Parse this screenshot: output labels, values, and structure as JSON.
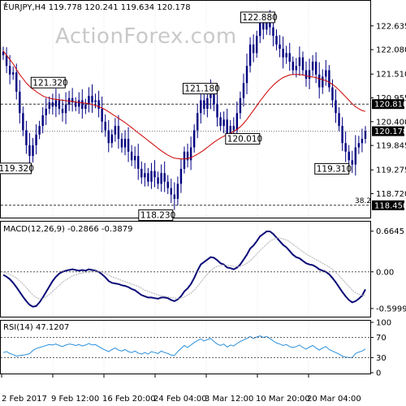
{
  "chart_data": {
    "type": "candlestick",
    "symbol": "EURJPY",
    "timeframe": "H4",
    "header": "EURJPY,H4  119.778 120.241 119.634 120.178",
    "watermark": "ActionForex.com",
    "ohlc_last": {
      "open": 119.778,
      "high": 120.241,
      "low": 119.634,
      "close": 120.178
    },
    "price_axis": {
      "range": [
        118.2,
        123.2
      ],
      "ticks": [
        {
          "value": 122.635,
          "label": "122.635"
        },
        {
          "value": 122.08,
          "label": "122.080"
        },
        {
          "value": 121.51,
          "label": "121.510"
        },
        {
          "value": 120.955,
          "label": "120.955"
        },
        {
          "value": 120.4,
          "label": "120.400"
        },
        {
          "value": 119.845,
          "label": "119.845"
        },
        {
          "value": 119.275,
          "label": "119.275"
        },
        {
          "value": 118.72,
          "label": "118.720"
        }
      ]
    },
    "horizontal_levels": [
      {
        "value": 120.81,
        "label": "120.810",
        "style": "dashed"
      },
      {
        "value": 120.178,
        "label": "120.178",
        "style": "dotted",
        "current": true
      },
      {
        "value": 118.45,
        "label": "118.450",
        "style": "dashed",
        "fib": "38.2"
      }
    ],
    "annotations": [
      {
        "label": "121.320",
        "value": 121.32,
        "bar": 5
      },
      {
        "label": "119.320",
        "value": 119.32,
        "bar": 8
      },
      {
        "label": "118.230",
        "value": 118.23,
        "bar": 52
      },
      {
        "label": "121.180",
        "value": 121.18,
        "bar": 63
      },
      {
        "label": "120.010",
        "value": 120.01,
        "bar": 70
      },
      {
        "label": "122.880",
        "value": 122.88,
        "bar": 81
      },
      {
        "label": "119.310",
        "value": 119.31,
        "bar": 106
      }
    ],
    "fib_label": "38.2",
    "close": [
      121.95,
      121.7,
      121.5,
      121.55,
      121.1,
      120.6,
      120.2,
      119.85,
      119.6,
      119.85,
      120.1,
      120.3,
      120.55,
      120.7,
      120.85,
      120.75,
      120.9,
      120.7,
      120.6,
      120.8,
      120.95,
      120.85,
      120.75,
      120.9,
      120.7,
      120.8,
      121.0,
      120.85,
      120.9,
      120.7,
      120.4,
      120.2,
      119.9,
      120.1,
      120.3,
      120.0,
      119.8,
      120.0,
      119.7,
      119.5,
      119.6,
      119.3,
      119.1,
      119.2,
      119.0,
      119.25,
      119.1,
      118.95,
      119.2,
      119.0,
      118.85,
      118.7,
      118.6,
      118.95,
      119.3,
      119.7,
      119.5,
      119.8,
      120.2,
      120.6,
      120.9,
      120.7,
      120.95,
      121.1,
      120.8,
      120.5,
      120.3,
      120.45,
      120.1,
      120.3,
      120.2,
      120.6,
      120.95,
      121.3,
      121.7,
      122.2,
      122.0,
      122.4,
      122.7,
      122.55,
      122.8,
      122.6,
      122.4,
      122.2,
      122.1,
      121.9,
      122.0,
      121.8,
      121.6,
      121.7,
      121.9,
      121.6,
      121.4,
      121.6,
      121.8,
      121.5,
      121.2,
      121.45,
      121.6,
      121.2,
      120.9,
      120.6,
      120.3,
      119.9,
      119.7,
      119.5,
      119.4,
      119.8,
      119.9,
      120.0,
      120.178
    ],
    "ma_line": {
      "color": "#cc0000",
      "values": [
        122.05,
        121.95,
        121.85,
        121.75,
        121.62,
        121.5,
        121.4,
        121.3,
        121.22,
        121.16,
        121.1,
        121.05,
        121.0,
        120.97,
        120.95,
        120.93,
        120.92,
        120.91,
        120.9,
        120.89,
        120.88,
        120.87,
        120.86,
        120.85,
        120.84,
        120.83,
        120.82,
        120.8,
        120.78,
        120.75,
        120.72,
        120.68,
        120.63,
        120.58,
        120.53,
        120.48,
        120.43,
        120.38,
        120.32,
        120.26,
        120.2,
        120.14,
        120.08,
        120.02,
        119.96,
        119.9,
        119.84,
        119.78,
        119.72,
        119.67,
        119.62,
        119.58,
        119.55,
        119.54,
        119.53,
        119.53,
        119.54,
        119.56,
        119.6,
        119.64,
        119.69,
        119.74,
        119.8,
        119.86,
        119.92,
        119.97,
        120.02,
        120.06,
        120.1,
        120.13,
        120.17,
        120.22,
        120.28,
        120.36,
        120.45,
        120.56,
        120.66,
        120.77,
        120.88,
        120.98,
        121.08,
        121.17,
        121.25,
        121.32,
        121.38,
        121.43,
        121.46,
        121.49,
        121.5,
        121.5,
        121.5,
        121.49,
        121.47,
        121.45,
        121.44,
        121.43,
        121.4,
        121.38,
        121.36,
        121.32,
        121.27,
        121.21,
        121.14,
        121.06,
        120.98,
        120.9,
        120.82,
        120.75,
        120.7,
        120.66,
        120.64
      ]
    },
    "macd": {
      "title": "MACD(12,26,9) -0.2866 -0.3879",
      "range": [
        -0.72,
        0.78
      ],
      "ticks": [
        {
          "value": 0.6645,
          "label": "0.6645"
        },
        {
          "value": 0.0,
          "label": "0.00"
        },
        {
          "value": -0.5999,
          "label": "-0.5999"
        }
      ],
      "series": [
        {
          "color": "#0a0a78",
          "values": [
            -0.05,
            -0.08,
            -0.12,
            -0.18,
            -0.25,
            -0.33,
            -0.41,
            -0.48,
            -0.54,
            -0.57,
            -0.56,
            -0.5,
            -0.42,
            -0.33,
            -0.24,
            -0.15,
            -0.08,
            -0.03,
            0.0,
            0.02,
            0.03,
            0.04,
            0.03,
            0.02,
            0.03,
            0.02,
            0.04,
            0.03,
            0.02,
            0.0,
            -0.04,
            -0.09,
            -0.15,
            -0.18,
            -0.19,
            -0.2,
            -0.22,
            -0.23,
            -0.25,
            -0.28,
            -0.3,
            -0.34,
            -0.38,
            -0.4,
            -0.42,
            -0.42,
            -0.43,
            -0.44,
            -0.42,
            -0.42,
            -0.43,
            -0.46,
            -0.48,
            -0.45,
            -0.4,
            -0.32,
            -0.27,
            -0.2,
            -0.1,
            0.02,
            0.12,
            0.16,
            0.2,
            0.24,
            0.23,
            0.19,
            0.14,
            0.12,
            0.07,
            0.06,
            0.04,
            0.07,
            0.12,
            0.2,
            0.28,
            0.38,
            0.43,
            0.5,
            0.58,
            0.62,
            0.66,
            0.66,
            0.62,
            0.56,
            0.5,
            0.44,
            0.4,
            0.34,
            0.28,
            0.24,
            0.22,
            0.18,
            0.14,
            0.12,
            0.11,
            0.08,
            0.04,
            0.02,
            0.0,
            -0.04,
            -0.1,
            -0.17,
            -0.25,
            -0.33,
            -0.4,
            -0.46,
            -0.5,
            -0.48,
            -0.44,
            -0.39,
            -0.2866
          ]
        },
        {
          "color": "#b0b0b0",
          "dashed": true,
          "values": [
            0.0,
            -0.02,
            -0.04,
            -0.07,
            -0.1,
            -0.15,
            -0.2,
            -0.26,
            -0.32,
            -0.38,
            -0.42,
            -0.44,
            -0.44,
            -0.41,
            -0.37,
            -0.32,
            -0.27,
            -0.22,
            -0.17,
            -0.13,
            -0.1,
            -0.07,
            -0.05,
            -0.03,
            -0.02,
            -0.01,
            0.0,
            0.01,
            0.01,
            0.01,
            0.0,
            -0.02,
            -0.05,
            -0.08,
            -0.1,
            -0.12,
            -0.14,
            -0.16,
            -0.18,
            -0.2,
            -0.22,
            -0.24,
            -0.27,
            -0.3,
            -0.32,
            -0.34,
            -0.36,
            -0.38,
            -0.39,
            -0.4,
            -0.41,
            -0.42,
            -0.43,
            -0.43,
            -0.43,
            -0.41,
            -0.38,
            -0.35,
            -0.3,
            -0.24,
            -0.17,
            -0.1,
            -0.04,
            0.02,
            0.06,
            0.09,
            0.1,
            0.11,
            0.11,
            0.1,
            0.09,
            0.09,
            0.09,
            0.11,
            0.14,
            0.18,
            0.23,
            0.29,
            0.35,
            0.4,
            0.45,
            0.5,
            0.53,
            0.55,
            0.55,
            0.54,
            0.52,
            0.49,
            0.45,
            0.41,
            0.37,
            0.33,
            0.29,
            0.26,
            0.23,
            0.2,
            0.17,
            0.14,
            0.11,
            0.08,
            0.04,
            -0.01,
            -0.06,
            -0.12,
            -0.18,
            -0.24,
            -0.3,
            -0.34,
            -0.37,
            -0.38,
            -0.3879
          ]
        }
      ]
    },
    "rsi": {
      "title": "RSI(14) 47.1207",
      "range": [
        0,
        100
      ],
      "ticks": [
        {
          "value": 100,
          "label": "100"
        },
        {
          "value": 70,
          "label": "70"
        },
        {
          "value": 30,
          "label": "30"
        },
        {
          "value": 0,
          "label": "0"
        }
      ],
      "levels": [
        70,
        30
      ],
      "color": "#2a8fdc",
      "values": [
        40,
        42,
        38,
        36,
        33,
        34,
        35,
        36,
        38,
        44,
        48,
        50,
        52,
        54,
        56,
        55,
        57,
        54,
        52,
        55,
        57,
        56,
        54,
        56,
        53,
        55,
        58,
        55,
        56,
        52,
        48,
        45,
        42,
        46,
        49,
        45,
        43,
        46,
        42,
        40,
        43,
        39,
        37,
        40,
        37,
        42,
        40,
        38,
        43,
        40,
        38,
        35,
        34,
        42,
        48,
        54,
        50,
        55,
        60,
        64,
        67,
        63,
        66,
        68,
        62,
        57,
        54,
        57,
        51,
        55,
        53,
        58,
        62,
        65,
        68,
        72,
        68,
        71,
        73,
        70,
        72,
        68,
        63,
        59,
        57,
        54,
        56,
        52,
        50,
        52,
        55,
        50,
        47,
        51,
        54,
        49,
        45,
        49,
        52,
        46,
        43,
        40,
        37,
        33,
        31,
        30,
        30,
        38,
        41,
        43,
        47.1207
      ]
    },
    "x_axis": {
      "labels": [
        "2 Feb 2017",
        "9 Feb 12:00",
        "16 Feb 20:00",
        "24 Feb 04:00",
        "3 Mar 12:00",
        "10 Mar 20:00",
        "20 Mar 04:00"
      ]
    },
    "colors": {
      "candle": "#000080",
      "ma": "#cc0000",
      "macd_main": "#0a0a78",
      "macd_signal": "#b0b0b0",
      "rsi": "#2a8fdc",
      "grid": "#e6e6e6",
      "level": "#555555"
    }
  }
}
